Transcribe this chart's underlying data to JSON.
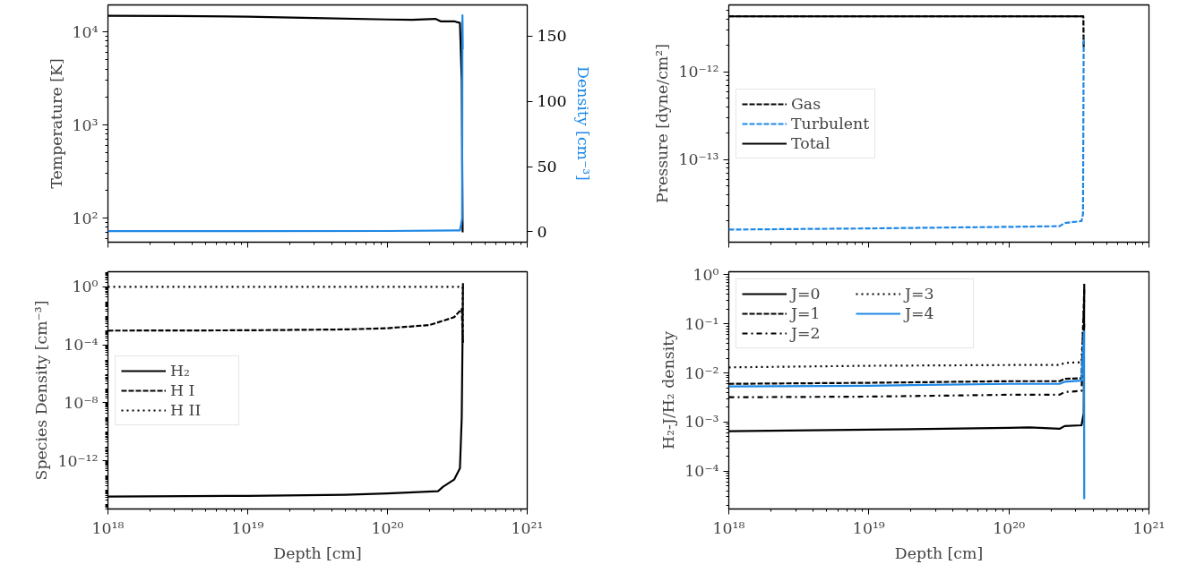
{
  "chart_data": [
    {
      "type": "line",
      "ylabel": "Temperature [K]",
      "y2label": "Density [cm⁻³]",
      "log": "xy",
      "grid": false,
      "legend": false,
      "tick_labels": "y",
      "xlim": [
        1e+18,
        1e+21
      ],
      "xticks": [
        {
          "value": 1e+18,
          "label": null
        },
        {
          "value": 1e+19,
          "label": null
        },
        {
          "value": 1e+20,
          "label": null
        },
        {
          "value": 1e+21,
          "label": null
        }
      ],
      "ylim": [
        55,
        19500
      ],
      "yticks": [
        {
          "value": 100,
          "label": "10²"
        },
        {
          "value": 1000,
          "label": "10³"
        },
        {
          "value": 10000,
          "label": "10⁴"
        }
      ],
      "y2lim": [
        -8,
        174
      ],
      "y2ticks": [
        0,
        50,
        100,
        150
      ],
      "series": [
        {
          "color": "#000000",
          "line_style": "solid",
          "x": [
            1e+18,
            3e+18,
            1e+19,
            3e+19,
            1e+20,
            1.5e+20,
            2.2e+20,
            2.4e+20,
            3e+20,
            3.3e+20,
            3.4e+20,
            3.45e+20
          ],
          "values": [
            14900,
            14800,
            14600,
            14100,
            13600,
            13500,
            13800,
            13000,
            13000,
            12500,
            3000,
            70
          ]
        },
        {
          "color": "#1e88e5",
          "line_style": "solid",
          "axis": "y2",
          "x": [
            1e+18,
            1e+19,
            1e+20,
            3.3e+20,
            3.42e+20,
            3.44e+20,
            3.46e+20
          ],
          "values": [
            0.5,
            0.5,
            0.6,
            1.0,
            10,
            166,
            140
          ]
        }
      ]
    },
    {
      "type": "line",
      "ylabel": "Pressure [dyne/cm²]",
      "log": "xy",
      "grid": false,
      "legend": "left",
      "tick_labels": "y",
      "xlim": [
        1e+18,
        1e+21
      ],
      "xticks": [
        {
          "value": 1e+18,
          "label": null
        },
        {
          "value": 1e+19,
          "label": null
        },
        {
          "value": 1e+20,
          "label": null
        },
        {
          "value": 1e+21,
          "label": null
        }
      ],
      "ylim": [
        1.15e-14,
        5.8e-12
      ],
      "yticks": [
        {
          "value": 1e-13,
          "label": "10⁻¹³"
        },
        {
          "value": 1e-12,
          "label": "10⁻¹²"
        }
      ],
      "series": [
        {
          "name": "Gas",
          "color": "#000000",
          "line_style": "dashed",
          "x": [
            1e+18,
            1e+19,
            1e+20,
            3.4e+20,
            3.42e+20
          ],
          "values": [
            4.3e-12,
            4.3e-12,
            4.3e-12,
            4.3e-12,
            1.84e-12
          ]
        },
        {
          "name": "Turbulent",
          "color": "#1e88e5",
          "line_style": "dashed",
          "x": [
            1e+18,
            1e+19,
            1e+20,
            2.3e+20,
            2.5e+20,
            3.3e+20,
            3.38e+20,
            3.42e+20
          ],
          "values": [
            1.6e-14,
            1.65e-14,
            1.72e-14,
            1.75e-14,
            1.9e-14,
            2e-14,
            2.4e-14,
            2.5e-12
          ]
        },
        {
          "name": "Total",
          "color": "#000000",
          "line_style": "solid",
          "x": [
            1e+18,
            1e+19,
            1e+20,
            3.42e+20
          ],
          "values": [
            4.3e-12,
            4.3e-12,
            4.3e-12,
            4.3e-12
          ]
        }
      ]
    },
    {
      "type": "line",
      "xlabel": "Depth [cm]",
      "ylabel": "Species Density [cm⁻³]",
      "log": "xy",
      "grid": false,
      "legend": "left",
      "xlim": [
        1e+18,
        1e+21
      ],
      "xticks": [
        {
          "value": 1e+18,
          "label": "10¹⁸"
        },
        {
          "value": 1e+19,
          "label": "10¹⁹"
        },
        {
          "value": 1e+20,
          "label": "10²⁰"
        },
        {
          "value": 1e+21,
          "label": "10²¹"
        }
      ],
      "ylim": [
        4.7e-16,
        11
      ],
      "yticks": [
        {
          "value": 1e-12,
          "label": "10⁻¹²"
        },
        {
          "value": 1e-08,
          "label": "10⁻⁸"
        },
        {
          "value": 0.0001,
          "label": "10⁻⁴"
        },
        {
          "value": 1,
          "label": "10⁰"
        }
      ],
      "series": [
        {
          "name": "H₂",
          "color": "#000000",
          "line_style": "solid",
          "x": [
            1e+18,
            1e+19,
            5e+19,
            1e+20,
            2.3e+20,
            2.5e+20,
            3e+20,
            3.3e+20,
            3.4e+20,
            3.45e+20,
            3.47e+20
          ],
          "values": [
            3.4e-15,
            3.8e-15,
            4.5e-15,
            5.5e-15,
            8e-15,
            1.6e-14,
            5e-14,
            3e-13,
            1e-09,
            0.001,
            1.8
          ]
        },
        {
          "name": "H I",
          "color": "#000000",
          "line_style": "dashed",
          "x": [
            1e+18,
            1e+19,
            5e+19,
            1e+20,
            2e+20,
            3e+20,
            3.4e+20,
            3.47e+20
          ],
          "values": [
            0.00095,
            0.001,
            0.00115,
            0.0014,
            0.0023,
            0.008,
            0.03,
            0.00012
          ]
        },
        {
          "name": "H II",
          "color": "#000000",
          "line_style": "dotted",
          "x": [
            1e+18,
            3.45e+20,
            3.47e+20
          ],
          "values": [
            1,
            1,
            0.0001
          ]
        }
      ]
    },
    {
      "type": "line",
      "xlabel": "Depth [cm]",
      "ylabel": "H₂-J/H₂ density",
      "log": "xy",
      "grid": false,
      "legend": "top left",
      "xlim": [
        1e+18,
        1e+21
      ],
      "xticks": [
        {
          "value": 1e+18,
          "label": "10¹⁸"
        },
        {
          "value": 1e+19,
          "label": "10¹⁹"
        },
        {
          "value": 1e+20,
          "label": "10²⁰"
        },
        {
          "value": 1e+21,
          "label": "10²¹"
        }
      ],
      "ylim": [
        1.7e-05,
        1.15
      ],
      "yticks": [
        {
          "value": 0.0001,
          "label": "10⁻⁴"
        },
        {
          "value": 0.001,
          "label": "10⁻³"
        },
        {
          "value": 0.01,
          "label": "10⁻²"
        },
        {
          "value": 0.1,
          "label": "10⁻¹"
        },
        {
          "value": 1,
          "label": "10⁰"
        }
      ],
      "series": [
        {
          "name": "J=0",
          "color": "#000000",
          "line_style": "solid",
          "x": [
            1e+18,
            1e+19,
            1e+20,
            1.4e+20,
            2.3e+20,
            2.5e+20,
            3.3e+20,
            3.42e+20,
            3.45e+20
          ],
          "values": [
            0.00065,
            0.0007,
            0.00076,
            0.00078,
            0.00073,
            0.00083,
            0.00086,
            0.0015,
            0.65
          ]
        },
        {
          "name": "J=1",
          "color": "#000000",
          "line_style": "dashed",
          "x": [
            1e+18,
            1e+19,
            1e+20,
            2.3e+20,
            2.5e+20,
            3.3e+20,
            3.45e+20
          ],
          "values": [
            0.006,
            0.0063,
            0.0068,
            0.0068,
            0.0076,
            0.0078,
            0.5
          ]
        },
        {
          "name": "J=2",
          "color": "#000000",
          "line_style": "dashdot",
          "x": [
            1e+18,
            1e+19,
            1e+20,
            2.3e+20,
            2.5e+20,
            3.3e+20,
            3.45e+20
          ],
          "values": [
            0.0032,
            0.0033,
            0.0036,
            0.0036,
            0.0041,
            0.0043,
            0.1
          ]
        },
        {
          "name": "J=3",
          "color": "#000000",
          "line_style": "dotted",
          "x": [
            1e+18,
            1e+19,
            1e+20,
            2.3e+20,
            2.5e+20,
            3.3e+20,
            3.45e+20
          ],
          "values": [
            0.013,
            0.014,
            0.0145,
            0.0145,
            0.016,
            0.0165,
            0.3
          ]
        },
        {
          "name": "J=4",
          "color": "#1e88e5",
          "line_style": "solid",
          "x": [
            1e+18,
            1e+19,
            1e+20,
            2.3e+20,
            2.5e+20,
            3.3e+20,
            3.44e+20,
            3.45e+20
          ],
          "values": [
            0.0053,
            0.0055,
            0.006,
            0.006,
            0.0066,
            0.007,
            0.07,
            2.7e-05
          ]
        }
      ]
    }
  ]
}
